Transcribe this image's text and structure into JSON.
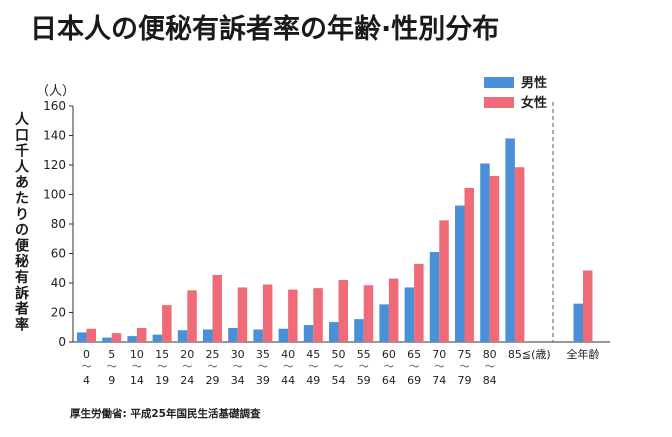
{
  "chart_data": {
    "type": "bar",
    "title": "日本人の便秘有訴者率の年齢·性別分布",
    "ylabel": "人口千人あたりの便秘有訴者率",
    "yunit": "（人）",
    "ylim": [
      0,
      160
    ],
    "yticks": [
      0,
      20,
      40,
      60,
      80,
      100,
      120,
      140,
      160
    ],
    "grid": false,
    "legend_position": "top-right",
    "categories": [
      [
        "0",
        "4"
      ],
      [
        "5",
        "9"
      ],
      [
        "10",
        "14"
      ],
      [
        "15",
        "19"
      ],
      [
        "20",
        "24"
      ],
      [
        "25",
        "29"
      ],
      [
        "30",
        "34"
      ],
      [
        "35",
        "39"
      ],
      [
        "40",
        "44"
      ],
      [
        "45",
        "49"
      ],
      [
        "50",
        "54"
      ],
      [
        "55",
        "59"
      ],
      [
        "60",
        "64"
      ],
      [
        "65",
        "69"
      ],
      [
        "70",
        "74"
      ],
      [
        "75",
        "79"
      ],
      [
        "80",
        "84"
      ],
      [
        "85≦(歳)"
      ]
    ],
    "total_category": "全年齢",
    "series": [
      {
        "name": "男性",
        "color": "#4a90d9",
        "values": [
          6.5,
          3,
          4,
          5,
          8,
          8.5,
          9.5,
          8.5,
          9,
          11.5,
          13.5,
          15.5,
          25.5,
          37,
          61,
          92.5,
          121,
          138
        ],
        "total": 26
      },
      {
        "name": "女性",
        "color": "#f06b78",
        "values": [
          9,
          6,
          9.5,
          25,
          35,
          45.5,
          37,
          39,
          35.5,
          36.5,
          42,
          38.5,
          43,
          53,
          82.5,
          104.5,
          112.5,
          118.5
        ],
        "total": 48.5
      }
    ],
    "source": "厚生労働省: 平成25年国民生活基礎調査"
  }
}
